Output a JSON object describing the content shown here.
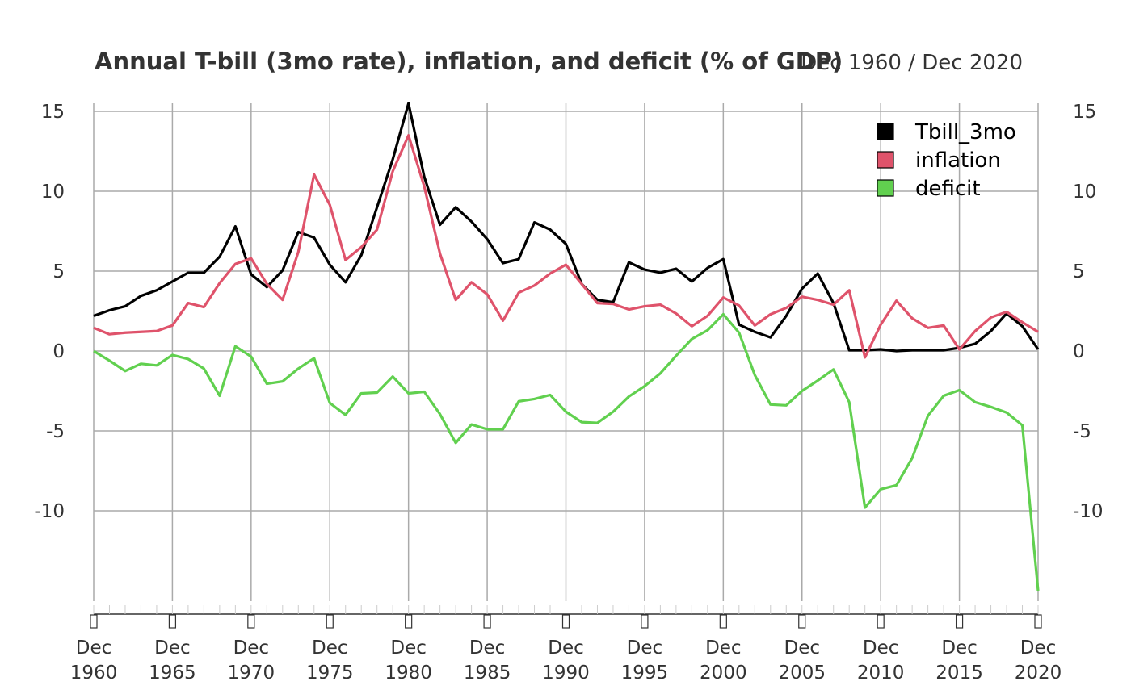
{
  "chart_data": {
    "type": "line",
    "title": "Annual T-bill (3mo rate), inflation, and deficit (% of GDP)",
    "date_range": "Dec 1960 / Dec 2020",
    "xlabel": "",
    "ylabel": "",
    "ylim": [
      -15,
      15
    ],
    "y_ticks": [
      "15",
      "10",
      "5",
      "0",
      "-5",
      "-10"
    ],
    "y_tick_values": [
      15,
      10,
      5,
      0,
      -5,
      -10
    ],
    "x_ticks": [
      {
        "month": "Dec",
        "year": "1960",
        "value": 1960
      },
      {
        "month": "Dec",
        "year": "1965",
        "value": 1965
      },
      {
        "month": "Dec",
        "year": "1970",
        "value": 1970
      },
      {
        "month": "Dec",
        "year": "1975",
        "value": 1975
      },
      {
        "month": "Dec",
        "year": "1980",
        "value": 1980
      },
      {
        "month": "Dec",
        "year": "1985",
        "value": 1985
      },
      {
        "month": "Dec",
        "year": "1990",
        "value": 1990
      },
      {
        "month": "Dec",
        "year": "1995",
        "value": 1995
      },
      {
        "month": "Dec",
        "year": "2000",
        "value": 2000
      },
      {
        "month": "Dec",
        "year": "2005",
        "value": 2005
      },
      {
        "month": "Dec",
        "year": "2010",
        "value": 2010
      },
      {
        "month": "Dec",
        "year": "2015",
        "value": 2015
      },
      {
        "month": "Dec",
        "year": "2020",
        "value": 2020
      }
    ],
    "grid": true,
    "legend_position": "top-right",
    "x": [
      1960,
      1961,
      1962,
      1963,
      1964,
      1965,
      1966,
      1967,
      1968,
      1969,
      1970,
      1971,
      1972,
      1973,
      1974,
      1975,
      1976,
      1977,
      1978,
      1979,
      1980,
      1981,
      1982,
      1983,
      1984,
      1985,
      1986,
      1987,
      1988,
      1989,
      1990,
      1991,
      1992,
      1993,
      1994,
      1995,
      1996,
      1997,
      1998,
      1999,
      2000,
      2001,
      2002,
      2003,
      2004,
      2005,
      2006,
      2007,
      2008,
      2009,
      2010,
      2011,
      2012,
      2013,
      2014,
      2015,
      2016,
      2017,
      2018,
      2019,
      2020
    ],
    "series": [
      {
        "name": "Tbill_3mo",
        "color": "#000000",
        "values": [
          2.2,
          2.55,
          2.8,
          3.45,
          3.8,
          4.35,
          4.9,
          4.9,
          5.9,
          7.8,
          4.8,
          4.0,
          5.05,
          7.45,
          7.1,
          5.4,
          4.3,
          6.0,
          9.0,
          12.0,
          15.5,
          10.9,
          7.9,
          9.0,
          8.1,
          7.0,
          5.5,
          5.75,
          8.05,
          7.6,
          6.7,
          4.2,
          3.2,
          3.05,
          5.55,
          5.1,
          4.9,
          5.15,
          4.35,
          5.2,
          5.75,
          1.65,
          1.2,
          0.85,
          2.2,
          3.9,
          4.85,
          3.0,
          0.05,
          0.05,
          0.1,
          0.0,
          0.05,
          0.05,
          0.05,
          0.2,
          0.45,
          1.25,
          2.35,
          1.55,
          0.1
        ]
      },
      {
        "name": "inflation",
        "color": "#DF536B",
        "values": [
          1.45,
          1.05,
          1.15,
          1.2,
          1.25,
          1.6,
          3.0,
          2.75,
          4.25,
          5.45,
          5.8,
          4.2,
          3.2,
          6.2,
          11.05,
          9.15,
          5.7,
          6.5,
          7.6,
          11.25,
          13.5,
          10.3,
          6.1,
          3.2,
          4.3,
          3.55,
          1.9,
          3.65,
          4.1,
          4.85,
          5.4,
          4.2,
          3.0,
          2.95,
          2.6,
          2.8,
          2.9,
          2.35,
          1.55,
          2.2,
          3.35,
          2.85,
          1.6,
          2.3,
          2.7,
          3.4,
          3.2,
          2.9,
          3.8,
          -0.4,
          1.65,
          3.15,
          2.05,
          1.45,
          1.6,
          0.1,
          1.25,
          2.1,
          2.45,
          1.8,
          1.2
        ]
      },
      {
        "name": "deficit",
        "color": "#61D04F",
        "values": [
          0.0,
          -0.6,
          -1.25,
          -0.8,
          -0.9,
          -0.25,
          -0.5,
          -1.1,
          -2.8,
          0.3,
          -0.35,
          -2.05,
          -1.9,
          -1.1,
          -0.45,
          -3.25,
          -4.0,
          -2.65,
          -2.6,
          -1.6,
          -2.65,
          -2.55,
          -3.95,
          -5.75,
          -4.6,
          -4.9,
          -4.9,
          -3.15,
          -3.0,
          -2.75,
          -3.8,
          -4.45,
          -4.5,
          -3.8,
          -2.85,
          -2.2,
          -1.4,
          -0.3,
          0.75,
          1.3,
          2.3,
          1.15,
          -1.5,
          -3.35,
          -3.4,
          -2.5,
          -1.85,
          -1.15,
          -3.2,
          -9.8,
          -8.65,
          -8.4,
          -6.7,
          -4.05,
          -2.8,
          -2.45,
          -3.2,
          -3.5,
          -3.85,
          -4.65,
          -15.0
        ]
      }
    ]
  }
}
